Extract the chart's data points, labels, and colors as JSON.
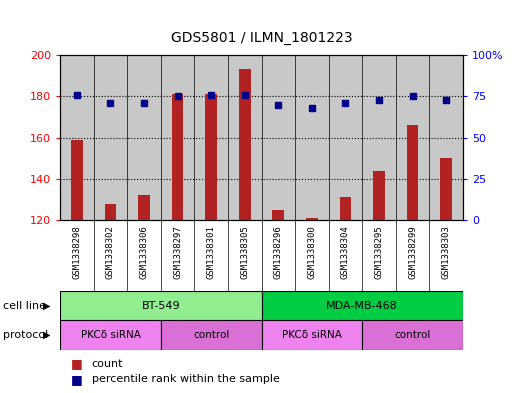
{
  "title": "GDS5801 / ILMN_1801223",
  "samples": [
    "GSM1338298",
    "GSM1338302",
    "GSM1338306",
    "GSM1338297",
    "GSM1338301",
    "GSM1338305",
    "GSM1338296",
    "GSM1338300",
    "GSM1338304",
    "GSM1338295",
    "GSM1338299",
    "GSM1338303"
  ],
  "counts": [
    159,
    128,
    132,
    181,
    181,
    193,
    125,
    121,
    131,
    144,
    166,
    150
  ],
  "percentiles": [
    76,
    71,
    71,
    75,
    76,
    76,
    70,
    68,
    71,
    73,
    75,
    73
  ],
  "ylim_left": [
    120,
    200
  ],
  "ylim_right": [
    0,
    100
  ],
  "yticks_left": [
    120,
    140,
    160,
    180,
    200
  ],
  "yticks_right": [
    0,
    25,
    50,
    75,
    100
  ],
  "bar_color": "#b22222",
  "dot_color": "#00008b",
  "cell_line_groups": [
    {
      "label": "BT-549",
      "start": 0,
      "end": 6,
      "color": "#90ee90"
    },
    {
      "label": "MDA-MB-468",
      "start": 6,
      "end": 12,
      "color": "#00cc44"
    }
  ],
  "protocol_groups": [
    {
      "label": "PKCδ siRNA",
      "start": 0,
      "end": 3,
      "color": "#ee82ee"
    },
    {
      "label": "control",
      "start": 3,
      "end": 6,
      "color": "#da70d6"
    },
    {
      "label": "PKCδ siRNA",
      "start": 6,
      "end": 9,
      "color": "#ee82ee"
    },
    {
      "label": "control",
      "start": 9,
      "end": 12,
      "color": "#da70d6"
    }
  ],
  "sample_bg_color": "#c8c8c8",
  "legend_count_color": "#b22222",
  "legend_pct_color": "#00008b",
  "fig_width": 5.23,
  "fig_height": 3.93,
  "dpi": 100
}
